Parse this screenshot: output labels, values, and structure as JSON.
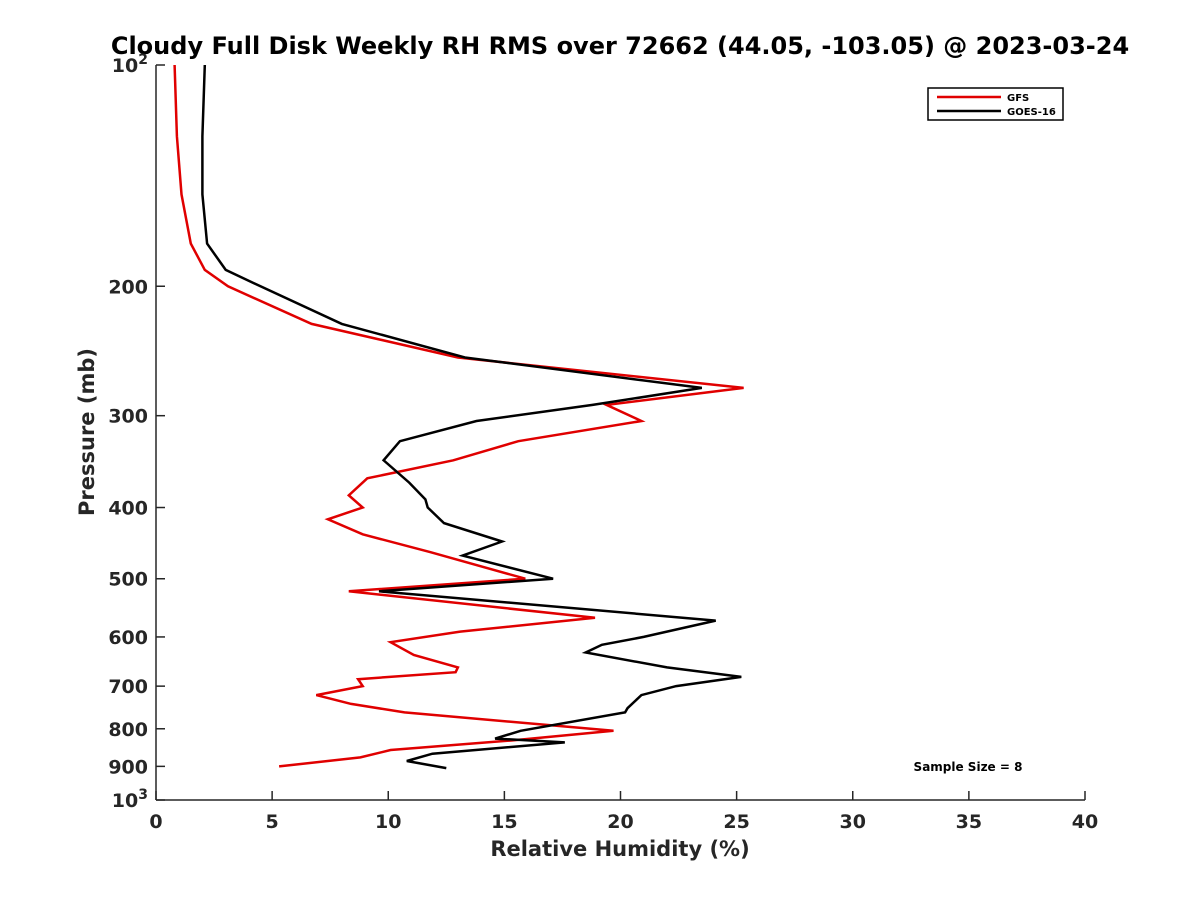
{
  "chart_data": {
    "type": "line",
    "title": "Cloudy Full Disk Weekly RH RMS over 72662 (44.05, -103.05) @ 2023-03-24",
    "xlabel": "Relative Humidity (%)",
    "ylabel": "Pressure (mb)",
    "xlim": [
      0,
      40
    ],
    "ylim": [
      100,
      1000
    ],
    "y_scale": "log",
    "y_reversed": true,
    "x_ticks": [
      0,
      5,
      10,
      15,
      20,
      25,
      30,
      35,
      40
    ],
    "y_ticks": [
      {
        "value": 100,
        "base": "10",
        "exp": "2"
      },
      {
        "value": 200,
        "label": "200"
      },
      {
        "value": 300,
        "label": "300"
      },
      {
        "value": 400,
        "label": "400"
      },
      {
        "value": 500,
        "label": "500"
      },
      {
        "value": 600,
        "label": "600"
      },
      {
        "value": 700,
        "label": "700"
      },
      {
        "value": 800,
        "label": "800"
      },
      {
        "value": 900,
        "label": "900"
      },
      {
        "value": 1000,
        "base": "10",
        "exp": "3"
      }
    ],
    "grid": false,
    "legend_position": "top-right",
    "series": [
      {
        "name": "GFS",
        "color": "#e00000",
        "points": [
          [
            0.8,
            100
          ],
          [
            0.9,
            125
          ],
          [
            1.1,
            150
          ],
          [
            1.5,
            175
          ],
          [
            2.1,
            190
          ],
          [
            3.1,
            200
          ],
          [
            6.7,
            225
          ],
          [
            13.0,
            250
          ],
          [
            25.3,
            275
          ],
          [
            19.4,
            290
          ],
          [
            20.9,
            305
          ],
          [
            15.6,
            325
          ],
          [
            12.8,
            345
          ],
          [
            9.1,
            365
          ],
          [
            8.3,
            385
          ],
          [
            8.9,
            400
          ],
          [
            7.4,
            415
          ],
          [
            8.9,
            435
          ],
          [
            11.8,
            460
          ],
          [
            15.9,
            500
          ],
          [
            8.3,
            520
          ],
          [
            18.9,
            565
          ],
          [
            13.1,
            590
          ],
          [
            10.1,
            610
          ],
          [
            11.1,
            635
          ],
          [
            13.0,
            660
          ],
          [
            12.9,
            670
          ],
          [
            8.7,
            685
          ],
          [
            8.9,
            700
          ],
          [
            6.9,
            720
          ],
          [
            8.4,
            740
          ],
          [
            10.7,
            760
          ],
          [
            19.7,
            805
          ],
          [
            15.3,
            830
          ],
          [
            10.1,
            855
          ],
          [
            8.8,
            875
          ],
          [
            5.3,
            900
          ]
        ]
      },
      {
        "name": "GOES-16",
        "color": "#000000",
        "points": [
          [
            2.1,
            100
          ],
          [
            2.0,
            125
          ],
          [
            2.0,
            150
          ],
          [
            2.2,
            175
          ],
          [
            3.0,
            190
          ],
          [
            4.5,
            200
          ],
          [
            8.0,
            225
          ],
          [
            13.3,
            250
          ],
          [
            23.5,
            275
          ],
          [
            18.8,
            290
          ],
          [
            13.8,
            305
          ],
          [
            10.5,
            325
          ],
          [
            9.8,
            345
          ],
          [
            10.9,
            370
          ],
          [
            11.6,
            390
          ],
          [
            11.7,
            400
          ],
          [
            12.4,
            420
          ],
          [
            14.9,
            445
          ],
          [
            13.2,
            465
          ],
          [
            17.1,
            500
          ],
          [
            9.6,
            520
          ],
          [
            24.1,
            570
          ],
          [
            21.0,
            600
          ],
          [
            19.2,
            615
          ],
          [
            18.5,
            630
          ],
          [
            22.0,
            660
          ],
          [
            25.2,
            680
          ],
          [
            22.4,
            700
          ],
          [
            20.9,
            720
          ],
          [
            20.3,
            750
          ],
          [
            20.2,
            760
          ],
          [
            15.7,
            805
          ],
          [
            14.6,
            825
          ],
          [
            17.6,
            835
          ],
          [
            11.9,
            865
          ],
          [
            10.8,
            885
          ],
          [
            12.5,
            905
          ]
        ]
      }
    ],
    "annotation": "Sample Size = 8"
  }
}
